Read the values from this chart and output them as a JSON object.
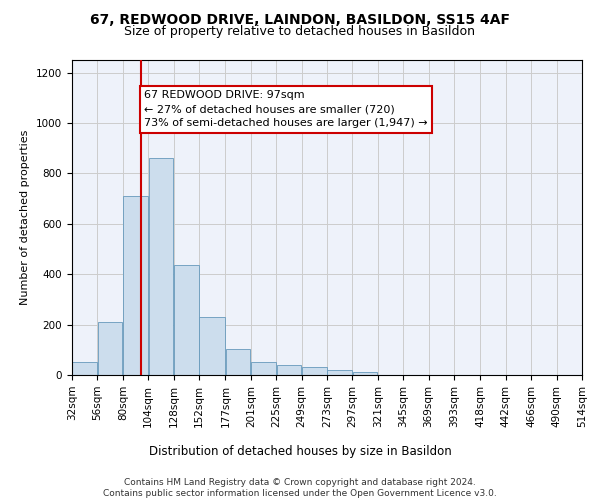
{
  "title": "67, REDWOOD DRIVE, LAINDON, BASILDON, SS15 4AF",
  "subtitle": "Size of property relative to detached houses in Basildon",
  "xlabel": "Distribution of detached houses by size in Basildon",
  "ylabel": "Number of detached properties",
  "bar_color": "#ccdded",
  "bar_edge_color": "#6699bb",
  "grid_color": "#cccccc",
  "bg_color": "#eef2fa",
  "vline_x": 97,
  "vline_color": "#cc0000",
  "annotation_text": "67 REDWOOD DRIVE: 97sqm\n← 27% of detached houses are smaller (720)\n73% of semi-detached houses are larger (1,947) →",
  "annotation_box_color": "#cc0000",
  "bin_edges": [
    32,
    56,
    80,
    104,
    128,
    152,
    177,
    201,
    225,
    249,
    273,
    297,
    321,
    345,
    369,
    393,
    418,
    442,
    466,
    490,
    514
  ],
  "bar_heights": [
    50,
    210,
    710,
    860,
    435,
    230,
    105,
    50,
    40,
    30,
    20,
    10,
    0,
    0,
    0,
    0,
    0,
    0,
    0,
    0
  ],
  "ylim": [
    0,
    1250
  ],
  "yticks": [
    0,
    200,
    400,
    600,
    800,
    1000,
    1200
  ],
  "footnote": "Contains HM Land Registry data © Crown copyright and database right 2024.\nContains public sector information licensed under the Open Government Licence v3.0.",
  "title_fontsize": 10,
  "subtitle_fontsize": 9,
  "ylabel_fontsize": 8,
  "xlabel_fontsize": 8.5,
  "tick_fontsize": 7.5,
  "annotation_fontsize": 8,
  "footnote_fontsize": 6.5
}
